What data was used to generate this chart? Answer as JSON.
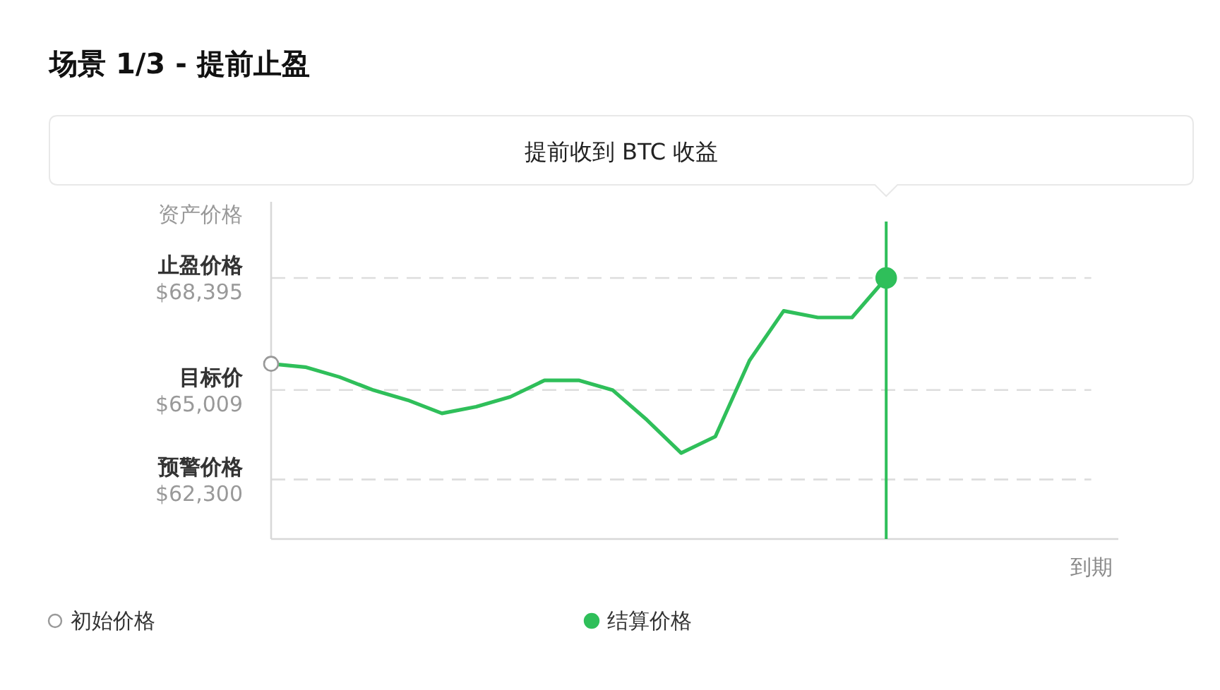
{
  "chart_data": {
    "type": "line",
    "title": "场景 1/3 - 提前止盈",
    "ylabel": "资产价格",
    "annotations": [
      "提前收到 BTC 收益",
      "到期"
    ],
    "categories": [
      null,
      null,
      null,
      null,
      null,
      null,
      null,
      null,
      null,
      null,
      null,
      null,
      null,
      null,
      null,
      null,
      null,
      null,
      null
    ],
    "ylim": [
      60500,
      70700
    ],
    "yticks": [
      {
        "value": 68395,
        "label": "$68,395"
      },
      {
        "value": 65009,
        "label": "$65,009"
      },
      {
        "value": 62300,
        "label": "$62,300"
      }
    ],
    "legend": "bottom",
    "ref_lines": [
      {
        "axis": "y",
        "value": 68395,
        "label": "止盈价格",
        "color": "#dddddd",
        "line_style": "dashed"
      },
      {
        "axis": "y",
        "value": 65009,
        "label": "目标价",
        "color": "#dddddd",
        "line_style": "dashed"
      },
      {
        "axis": "y",
        "value": 62300,
        "label": "预警价格",
        "color": "#dddddd",
        "line_style": "dashed"
      }
    ],
    "series": [
      {
        "color": "#2fbf5a",
        "values": [
          65800,
          65700,
          65400,
          65000,
          64700,
          64300,
          64500,
          64800,
          65300,
          65300,
          65000,
          64100,
          63100,
          63600,
          65900,
          67400,
          67200,
          67200,
          68395
        ]
      },
      {
        "type": "scatter",
        "name": "初始价格",
        "color": "#ffffff",
        "marker": "circle",
        "values": [
          65800,
          null,
          null,
          null,
          null,
          null,
          null,
          null,
          null,
          null,
          null,
          null,
          null,
          null,
          null,
          null,
          null,
          null,
          null
        ]
      },
      {
        "type": "lollipop",
        "name": "结算价格",
        "color": "#2fbf5a",
        "marker": "circle",
        "values": [
          null,
          null,
          null,
          null,
          null,
          null,
          null,
          null,
          null,
          null,
          null,
          null,
          null,
          null,
          null,
          null,
          null,
          null,
          68395
        ]
      }
    ]
  }
}
